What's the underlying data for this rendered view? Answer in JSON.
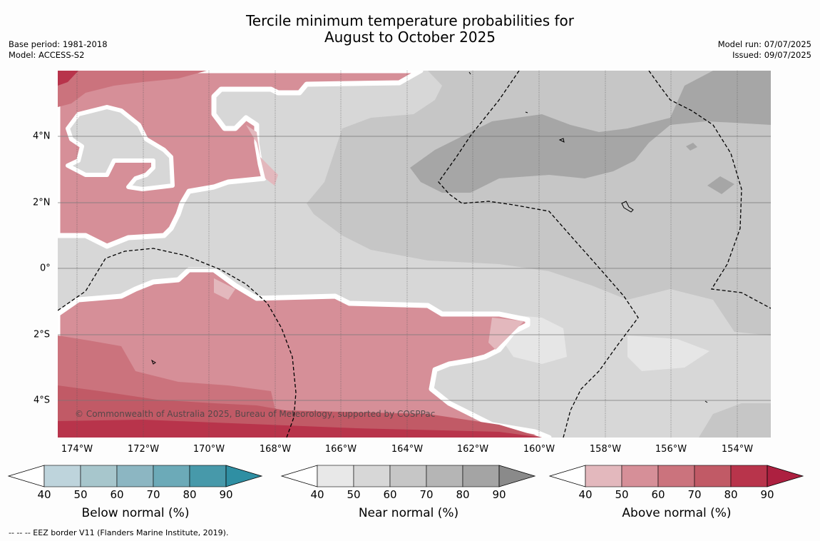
{
  "title_line1": "Tercile minimum temperature probabilities for",
  "title_line2": "August to October 2025",
  "base_period": "Base period: 1981-2018",
  "model": "Model: ACCESS-S2",
  "model_run": "Model run: 07/07/2025",
  "issued": "Issued: 09/07/2025",
  "copyright": "© Commonwealth of Australia 2025, Bureau of Meteorology, supported by COSPPac",
  "footnote": "--  --  -- EEZ border V11 (Flanders Marine Institute, 2019).",
  "lat_labels": [
    "4°N",
    "2°N",
    "0°",
    "2°S",
    "4°S"
  ],
  "lon_labels": [
    "174°W",
    "172°W",
    "170°W",
    "168°W",
    "166°W",
    "164°W",
    "162°W",
    "160°W",
    "158°W",
    "156°W",
    "154°W"
  ],
  "colorbars": [
    {
      "title": "Below normal (%)",
      "ticks": [
        "40",
        "50",
        "60",
        "70",
        "80",
        "90"
      ],
      "colors": [
        "#bed4dc",
        "#a7c6cc",
        "#8cb6c2",
        "#6caab8",
        "#4799aa",
        "#2f8fa3"
      ]
    },
    {
      "title": "Near normal (%)",
      "ticks": [
        "40",
        "50",
        "60",
        "70",
        "80",
        "90"
      ],
      "colors": [
        "#e8e8e8",
        "#d7d7d7",
        "#c6c6c6",
        "#b5b5b5",
        "#a4a4a4",
        "#8a8a8a"
      ]
    },
    {
      "title": "Above normal (%)",
      "ticks": [
        "40",
        "50",
        "60",
        "70",
        "80",
        "90"
      ],
      "colors": [
        "#e3b8bd",
        "#d68f98",
        "#cb737d",
        "#c15a66",
        "#b8344b",
        "#ad2040"
      ]
    }
  ],
  "colors": {
    "above_50": "#d68f98",
    "above_60": "#cb737d",
    "above_70": "#c15a66",
    "above_80": "#b8344b",
    "near_50": "#d7d7d7",
    "near_60": "#c6c6c6",
    "near_70": "#a6a6a6",
    "near_40": "#e6e6e6",
    "above_40": "#e3b8bd"
  }
}
